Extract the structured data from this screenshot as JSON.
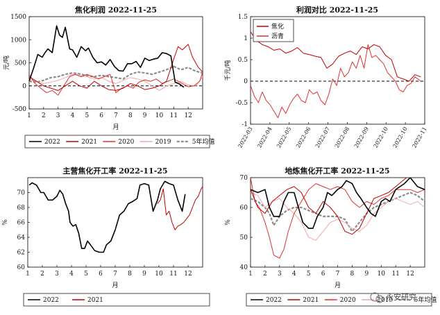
{
  "colors": {
    "s2022": "#000000",
    "s2021": "#c00000",
    "s2020": "#e03030",
    "s2019": "#f4a6a6",
    "avg": "#8c8c8c",
    "coke": "#c00000",
    "pitch": "#e03030"
  },
  "watermark": {
    "text": "永安研究",
    "icon": "wechat-icon"
  },
  "chart_data": [
    {
      "id": "profit",
      "type": "line",
      "title": "焦化利润 2022-11-25",
      "ylabel": "元/吨",
      "xlabel": "月",
      "ylim": [
        -500,
        1500
      ],
      "yticks": [
        -500,
        0,
        500,
        1000,
        1500
      ],
      "xlim": [
        1,
        13
      ],
      "xticks": [
        "1",
        "2",
        "3",
        "4",
        "5",
        "6",
        "7",
        "8",
        "9",
        "10",
        "11",
        "12"
      ],
      "zero_line": true,
      "legend_position": "bottom",
      "series": [
        {
          "name": "2022",
          "style": "s2022",
          "x": [
            1,
            1.3,
            1.6,
            1.9,
            2.1,
            2.3,
            2.6,
            2.9,
            3.1,
            3.3,
            3.5,
            3.8,
            4.0,
            4.3,
            4.6,
            4.9,
            5.1,
            5.4,
            5.7,
            6.0,
            6.3,
            6.6,
            6.9,
            7.2,
            7.5,
            7.8,
            8.1,
            8.4,
            8.7,
            9.0,
            9.3,
            9.6,
            9.9,
            10.2,
            10.5,
            10.8,
            11.1,
            11.4,
            11.7
          ],
          "y": [
            100,
            380,
            680,
            620,
            720,
            800,
            720,
            1300,
            1100,
            1050,
            1270,
            800,
            780,
            620,
            850,
            760,
            820,
            620,
            500,
            520,
            450,
            570,
            420,
            330,
            320,
            480,
            480,
            530,
            400,
            600,
            550,
            580,
            600,
            720,
            700,
            650,
            80,
            40,
            -30
          ]
        },
        {
          "name": "2021",
          "style": "s2021",
          "x": [
            1,
            1.5,
            2,
            2.5,
            3,
            3.5,
            4,
            4.5,
            5,
            5.5,
            6,
            6.5,
            7,
            7.5,
            8,
            8.5,
            9,
            9.5,
            10,
            10.5,
            11,
            11.3,
            11.6,
            12,
            12.3,
            12.7,
            13
          ],
          "y": [
            200,
            100,
            0,
            -50,
            -100,
            0,
            100,
            0,
            -50,
            100,
            0,
            -80,
            -100,
            -50,
            50,
            0,
            -80,
            -50,
            0,
            100,
            580,
            850,
            780,
            900,
            620,
            400,
            300
          ]
        },
        {
          "name": "2020",
          "style": "s2020",
          "x": [
            1,
            1.4,
            1.8,
            2.2,
            2.6,
            3,
            3.4,
            3.8,
            4.2,
            4.6,
            5,
            5.4,
            5.8,
            6.2,
            6.6,
            7,
            7.4,
            7.8,
            8.2,
            8.6,
            9,
            9.4,
            9.8,
            10.2,
            10.6,
            11,
            11.3,
            11.6,
            12,
            12.4,
            12.8,
            13
          ],
          "y": [
            250,
            50,
            -50,
            -150,
            -100,
            -200,
            0,
            200,
            250,
            200,
            250,
            200,
            150,
            200,
            250,
            -150,
            -50,
            0,
            -50,
            80,
            130,
            100,
            150,
            50,
            100,
            150,
            100,
            50,
            -20,
            0,
            100,
            300
          ]
        },
        {
          "name": "2019",
          "style": "s2019",
          "x": [
            1,
            1.5,
            2,
            2.5,
            3,
            3.5,
            4,
            4.5,
            5,
            5.5,
            6,
            6.5,
            7,
            7.5,
            8,
            8.5,
            9,
            9.5,
            10,
            10.5,
            11,
            11.5,
            12,
            12.5,
            13
          ],
          "y": [
            150,
            100,
            50,
            80,
            120,
            180,
            250,
            220,
            200,
            150,
            180,
            100,
            50,
            120,
            180,
            150,
            100,
            0,
            -100,
            0,
            50,
            100,
            20,
            -10,
            200
          ]
        },
        {
          "name": "5年均值",
          "style": "avg",
          "x": [
            1,
            1.5,
            2,
            2.5,
            3,
            3.5,
            4,
            4.5,
            5,
            5.5,
            6,
            6.5,
            7,
            7.5,
            8,
            8.5,
            9,
            9.5,
            10,
            10.5,
            11,
            11.5,
            12,
            12.5,
            13
          ],
          "y": [
            100,
            80,
            120,
            180,
            200,
            250,
            280,
            260,
            220,
            200,
            230,
            200,
            180,
            150,
            250,
            300,
            280,
            250,
            300,
            350,
            420,
            350,
            400,
            320,
            280
          ]
        }
      ]
    },
    {
      "id": "ratio",
      "type": "line",
      "title": "利润对比 2022-11-25",
      "ylabel": "千元/吨",
      "ylim": [
        -1,
        1.5
      ],
      "yticks": [
        -1,
        -0.5,
        0,
        0.5,
        1,
        1.5
      ],
      "xlim": [
        0,
        8.9
      ],
      "xticks": [
        "2022-03",
        "2022-04",
        "2022-05",
        "2022-06",
        "2022-07",
        "2022-08",
        "2022-09",
        "2022-10",
        "2022-10",
        "2022-11"
      ],
      "zero_line": true,
      "legend_position": "top-left",
      "series": [
        {
          "name": "焦化",
          "style": "coke",
          "x": [
            0,
            0.3,
            0.6,
            0.9,
            1.2,
            1.5,
            1.8,
            2.1,
            2.4,
            2.7,
            3.0,
            3.3,
            3.6,
            3.9,
            4.2,
            4.5,
            4.8,
            5.1,
            5.4,
            5.7,
            6.0,
            6.3,
            6.6,
            6.9,
            7.2,
            7.5,
            7.8,
            8.1,
            8.4,
            8.7
          ],
          "y": [
            1.15,
            0.95,
            0.85,
            0.8,
            0.72,
            0.75,
            0.65,
            0.7,
            0.78,
            0.65,
            0.62,
            0.58,
            0.55,
            0.3,
            0.4,
            0.58,
            0.65,
            0.7,
            0.62,
            0.8,
            0.75,
            0.85,
            0.8,
            0.6,
            0.5,
            0.1,
            0.05,
            0.0,
            0.15,
            0.1
          ]
        },
        {
          "name": "沥青",
          "style": "pitch",
          "x": [
            0,
            0.2,
            0.4,
            0.6,
            0.8,
            1.0,
            1.2,
            1.4,
            1.6,
            1.8,
            2.0,
            2.2,
            2.4,
            2.6,
            2.8,
            3.0,
            3.2,
            3.4,
            3.6,
            3.8,
            4.0,
            4.2,
            4.4,
            4.6,
            4.8,
            5.0,
            5.2,
            5.4,
            5.6,
            5.8,
            6.0,
            6.2,
            6.4,
            6.6,
            6.8,
            7.0,
            7.2,
            7.4,
            7.6,
            7.8,
            8.0,
            8.2,
            8.4,
            8.7
          ],
          "y": [
            -0.1,
            -0.35,
            -0.5,
            -0.25,
            -0.45,
            -0.55,
            -0.7,
            -0.85,
            -0.6,
            -0.75,
            -0.55,
            -0.4,
            -0.3,
            -0.45,
            -0.5,
            -0.2,
            -0.3,
            -0.25,
            -0.45,
            -0.55,
            -0.3,
            0.05,
            -0.1,
            0.3,
            0.1,
            0.2,
            0.45,
            0.3,
            0.6,
            0.3,
            0.85,
            0.55,
            0.6,
            0.5,
            0.4,
            0.2,
            0.1,
            0.0,
            -0.2,
            -0.25,
            -0.1,
            -0.05,
            0.1,
            0.0
          ]
        }
      ]
    },
    {
      "id": "main_util",
      "type": "line",
      "title": "主营焦化开工率 2022-11-25",
      "ylabel": "%",
      "xlabel": "月",
      "ylim": [
        60,
        72
      ],
      "yticks": [
        60,
        62,
        64,
        66,
        68,
        70
      ],
      "xlim": [
        1,
        13
      ],
      "xticks": [
        "1",
        "2",
        "3",
        "4",
        "5",
        "6",
        "7",
        "8",
        "9",
        "10",
        "11",
        "12"
      ],
      "legend_position": "bottom",
      "series": [
        {
          "name": "2022",
          "style": "s2022",
          "x": [
            1.1,
            1.3,
            1.6,
            1.9,
            2.1,
            2.4,
            2.7,
            3.0,
            3.2,
            3.4,
            3.6,
            3.8,
            3.9,
            4.1,
            4.3,
            4.5,
            4.7,
            4.9,
            5.1,
            5.3,
            5.6,
            5.9,
            6.2,
            6.4,
            6.7,
            7.0,
            7.3,
            7.6,
            7.9,
            8.2,
            8.5,
            8.7,
            9.0,
            9.3,
            9.6,
            9.9,
            10.1,
            10.4,
            10.7,
            11.0,
            11.3,
            11.6,
            11.8
          ],
          "y": [
            71,
            71.3,
            71,
            70,
            70,
            69,
            69,
            69.5,
            70.3,
            69.8,
            68.5,
            67.5,
            66,
            65.5,
            65.7,
            64.5,
            62.5,
            62.5,
            63.5,
            63,
            62.2,
            62,
            62,
            63,
            63.5,
            65,
            67,
            67.5,
            68.5,
            68.8,
            69.2,
            71,
            71.2,
            71,
            67.5,
            69,
            70.5,
            71.5,
            71.2,
            71,
            69,
            67.5,
            69.8
          ]
        },
        {
          "name": "2021",
          "style": "s2021",
          "x": [
            9.9,
            10.1,
            10.3,
            10.5,
            10.7,
            10.9,
            11.1,
            11.3,
            11.5,
            11.7,
            11.9,
            12.1,
            12.3,
            12.5,
            12.7,
            12.9,
            13
          ],
          "y": [
            68.5,
            69,
            70.5,
            67,
            67.5,
            66,
            65,
            65.5,
            65.7,
            66,
            66.5,
            67,
            68,
            69,
            69.5,
            70.5,
            70.8
          ]
        }
      ]
    },
    {
      "id": "indep_util",
      "type": "line",
      "title": "地炼焦化开工率 2022-11-25",
      "ylabel": "%",
      "xlabel": "月",
      "ylim": [
        40,
        70
      ],
      "yticks": [
        40,
        50,
        60,
        70
      ],
      "xlim": [
        1,
        13
      ],
      "xticks": [
        "1",
        "2",
        "3",
        "4",
        "5",
        "6",
        "7",
        "8",
        "9",
        "10",
        "11",
        "12"
      ],
      "legend_position": "bottom",
      "series": [
        {
          "name": "2022",
          "style": "s2022",
          "x": [
            1,
            1.5,
            2,
            2.3,
            2.6,
            3,
            3.3,
            3.6,
            4,
            4.3,
            4.6,
            5,
            5.3,
            5.6,
            6,
            6.3,
            6.6,
            7,
            7.3,
            7.6,
            8,
            8.3,
            8.6,
            9,
            9.3,
            9.6,
            10,
            10.3,
            10.6,
            11,
            11.3,
            11.6,
            12,
            12.5,
            13
          ],
          "y": [
            66,
            65,
            66,
            60,
            57,
            57,
            62,
            65,
            65,
            60,
            55,
            53,
            53,
            57,
            60,
            65,
            64,
            66,
            67,
            69,
            68,
            65,
            63,
            60,
            58,
            57,
            62,
            63,
            62,
            66,
            67,
            68,
            70,
            67,
            66
          ]
        },
        {
          "name": "2021",
          "style": "s2021",
          "x": [
            1,
            1.5,
            2,
            2.5,
            3,
            3.5,
            4,
            4.5,
            5,
            5.5,
            6,
            6.5,
            7,
            7.5,
            8,
            8.5,
            9,
            9.5,
            10,
            10.5,
            11,
            11.5,
            12,
            12.5,
            13
          ],
          "y": [
            66,
            60,
            58,
            62,
            64,
            66,
            67,
            65,
            60,
            58,
            62,
            60,
            57,
            52,
            51,
            53,
            58,
            63,
            64,
            65,
            67,
            69,
            71,
            71,
            70
          ]
        },
        {
          "name": "2020",
          "style": "s2020",
          "x": [
            1,
            1.3,
            1.6,
            2,
            2.3,
            2.6,
            3,
            3.3,
            3.6,
            4,
            4.5,
            5,
            5.5,
            6,
            6.5,
            7,
            7.5,
            8,
            8.5,
            9,
            9.5,
            10,
            10.5,
            11,
            11.5,
            12,
            12.5,
            13
          ],
          "y": [
            70,
            62,
            60,
            55,
            50,
            44,
            43,
            46,
            52,
            58,
            62,
            66,
            68,
            67,
            66,
            67,
            66,
            62,
            60,
            62,
            61,
            63,
            64,
            66,
            66,
            66,
            65,
            66
          ]
        },
        {
          "name": "2019",
          "style": "s2019",
          "x": [
            1,
            1.5,
            2,
            2.5,
            3,
            3.5,
            4,
            4.5,
            5,
            5.5,
            6,
            6.5,
            7,
            7.5,
            8,
            8.5,
            9,
            9.5,
            10,
            10.5,
            11,
            11.5,
            12,
            12.5,
            13
          ],
          "y": [
            65,
            64,
            60,
            62,
            63,
            60,
            58,
            55,
            50,
            49,
            52,
            55,
            56,
            55,
            53,
            52,
            54,
            58,
            60,
            62,
            63,
            62,
            61,
            62,
            60
          ]
        },
        {
          "name": "5年均值",
          "style": "avg",
          "x": [
            1,
            1.5,
            2,
            2.3,
            2.6,
            3,
            3.5,
            4,
            4.5,
            5,
            5.5,
            6,
            6.5,
            7,
            7.5,
            8,
            8.5,
            9,
            9.5,
            10,
            10.5,
            11,
            11.5,
            12,
            12.5,
            13
          ],
          "y": [
            63,
            62,
            60,
            58,
            54,
            57,
            59,
            60,
            60,
            59,
            58,
            57,
            57,
            57,
            56,
            52,
            55,
            58,
            60,
            61,
            62,
            63,
            64,
            65,
            64,
            62
          ]
        }
      ]
    }
  ]
}
